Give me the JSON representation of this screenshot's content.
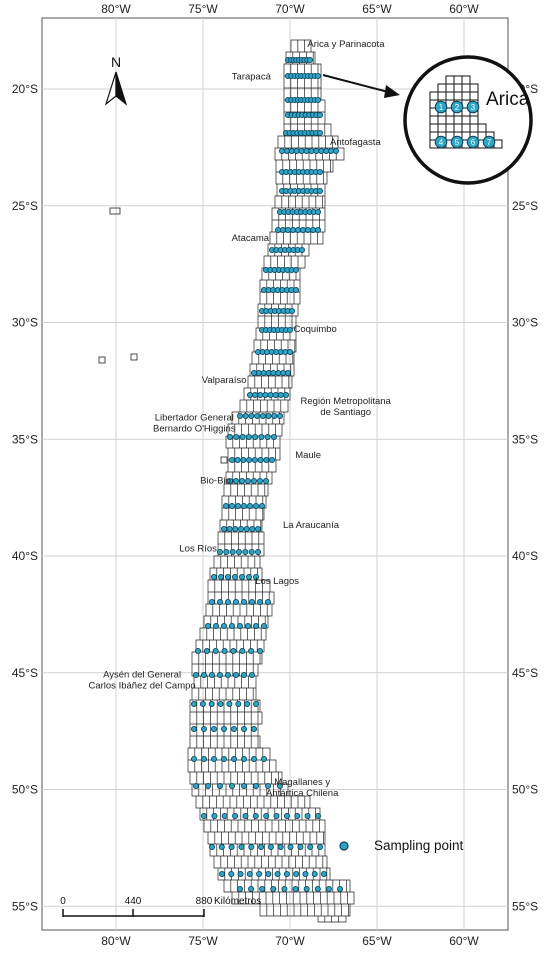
{
  "map": {
    "lon_ticks": [
      {
        "lon": -80,
        "label": "80°W"
      },
      {
        "lon": -75,
        "label": "75°W"
      },
      {
        "lon": -70,
        "label": "70°W"
      },
      {
        "lon": -65,
        "label": "65°W"
      },
      {
        "lon": -60,
        "label": "60°W"
      }
    ],
    "lat_ticks": [
      {
        "lat": -20,
        "label": "20°S"
      },
      {
        "lat": -25,
        "label": "25°S"
      },
      {
        "lat": -30,
        "label": "30°S"
      },
      {
        "lat": -35,
        "label": "35°S"
      },
      {
        "lat": -40,
        "label": "40°S"
      },
      {
        "lat": -45,
        "label": "45°S"
      },
      {
        "lat": -50,
        "label": "50°S"
      },
      {
        "lat": -55,
        "label": "55°S"
      }
    ],
    "regions": [
      {
        "name": "arica",
        "lines": [
          "Arica y Parinacota"
        ],
        "lon": -69.0,
        "lat": -18.2,
        "anchor": "start"
      },
      {
        "name": "tarapaca",
        "lines": [
          "Tarapacá"
        ],
        "lon": -71.1,
        "lat": -19.6,
        "anchor": "end"
      },
      {
        "name": "antofagasta",
        "lines": [
          "Antofagasta"
        ],
        "lon": -67.7,
        "lat": -22.4,
        "anchor": "start"
      },
      {
        "name": "atacama",
        "lines": [
          "Atacama"
        ],
        "lon": -71.2,
        "lat": -26.5,
        "anchor": "end"
      },
      {
        "name": "coquimbo",
        "lines": [
          "Coquimbo"
        ],
        "lon": -69.8,
        "lat": -30.4,
        "anchor": "start"
      },
      {
        "name": "valparaiso",
        "lines": [
          "Valparaíso"
        ],
        "lon": -72.5,
        "lat": -32.6,
        "anchor": "end"
      },
      {
        "name": "metropolitana",
        "lines": [
          "Región Metropolitana",
          "de Santiago"
        ],
        "lon": -66.8,
        "lat": -33.5,
        "anchor": "middle"
      },
      {
        "name": "ohiggins",
        "lines": [
          "Libertador General",
          "Bernardo O'Higgins"
        ],
        "lon": -75.5,
        "lat": -34.2,
        "anchor": "middle"
      },
      {
        "name": "maule",
        "lines": [
          "Maule"
        ],
        "lon": -69.7,
        "lat": -35.8,
        "anchor": "start"
      },
      {
        "name": "biobio",
        "lines": [
          "Bio-Bio"
        ],
        "lon": -73.4,
        "lat": -36.9,
        "anchor": "end"
      },
      {
        "name": "araucania",
        "lines": [
          "La Araucanía"
        ],
        "lon": -70.4,
        "lat": -38.8,
        "anchor": "start"
      },
      {
        "name": "losrios",
        "lines": [
          "Los Ríos"
        ],
        "lon": -74.2,
        "lat": -39.8,
        "anchor": "end"
      },
      {
        "name": "loslagos",
        "lines": [
          "Los Lagos"
        ],
        "lon": -72.0,
        "lat": -41.2,
        "anchor": "start"
      },
      {
        "name": "aysen",
        "lines": [
          "Aysén del General",
          "Carlos Ibáñez del Campo"
        ],
        "lon": -78.5,
        "lat": -45.2,
        "anchor": "middle"
      },
      {
        "name": "magallanes",
        "lines": [
          "Magallanes y",
          "Antártica Chilena"
        ],
        "lon": -69.3,
        "lat": -49.8,
        "anchor": "middle"
      }
    ],
    "inset": {
      "title": "Arica",
      "points": [
        "1",
        "2",
        "3",
        "4",
        "5",
        "6",
        "7"
      ]
    },
    "legend": {
      "label": "Sampling point",
      "marker_color": "#2aa6c9"
    },
    "scale": {
      "ticks": [
        "0",
        "440",
        "880"
      ],
      "unit": "Kilómetros"
    },
    "north_label": "N",
    "colors": {
      "grid_cell": "#222222",
      "point_fill": "#2aa6c9",
      "point_stroke": "#0d3f55",
      "graticule": "#d0d0d0"
    }
  }
}
